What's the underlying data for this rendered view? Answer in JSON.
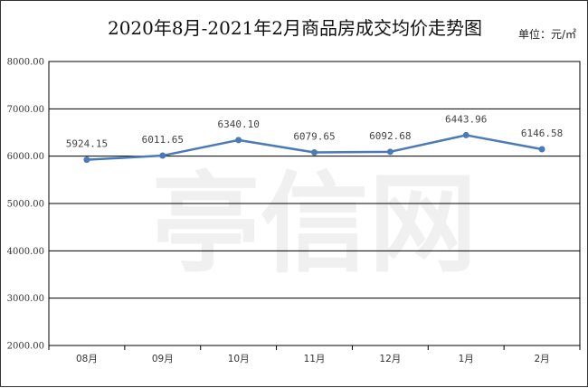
{
  "header": {
    "title": "2020年8月-2021年2月商品房成交均价走势图",
    "unit": "单位：元/㎡"
  },
  "watermark": "亭信网",
  "colors": {
    "line": "#4a7ab7",
    "grid": "#000000",
    "watermark": "#f0f0f0"
  },
  "chart_data": {
    "type": "line",
    "title": "2020年8月-2021年2月商品房成交均价走势图",
    "categories": [
      "08月",
      "09月",
      "10月",
      "11月",
      "12月",
      "1月",
      "2月"
    ],
    "values": [
      5924.15,
      6011.65,
      6340.1,
      6079.65,
      6092.68,
      6443.96,
      6146.58
    ],
    "data_labels": [
      "5924.15",
      "6011.65",
      "6340.10",
      "6079.65",
      "6092.68",
      "6443.96",
      "6146.58"
    ],
    "ylim": [
      2000,
      8000
    ],
    "yticks": [
      2000,
      3000,
      4000,
      5000,
      6000,
      7000,
      8000
    ],
    "ytick_labels": [
      "2000.00",
      "3000.00",
      "4000.00",
      "5000.00",
      "6000.00",
      "7000.00",
      "8000.00"
    ],
    "grid": true,
    "legend": "none"
  }
}
